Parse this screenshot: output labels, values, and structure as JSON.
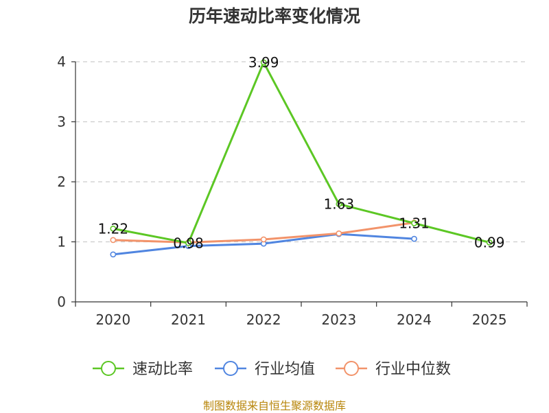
{
  "chart_data": {
    "type": "line",
    "title": "历年速动比率变化情况",
    "categories": [
      "2020",
      "2021",
      "2022",
      "2023",
      "2024",
      "2025"
    ],
    "ylim": [
      0,
      4
    ],
    "yticks": [
      0,
      1,
      2,
      3,
      4
    ],
    "grid": true,
    "legend_position": "bottom",
    "series": [
      {
        "name": "速动比率",
        "color": "#5cc724",
        "values": [
          1.22,
          0.98,
          3.99,
          1.63,
          1.31,
          0.99
        ],
        "labels": [
          "1.22",
          "0.98",
          "3.99",
          "1.63",
          "1.31",
          "0.99"
        ],
        "show_labels": true,
        "marker_color": "#5cc724"
      },
      {
        "name": "行业均值",
        "color": "#5085e0",
        "values": [
          0.79,
          0.93,
          0.97,
          1.13,
          1.05,
          null
        ],
        "show_labels": false,
        "marker_color": "#5085e0"
      },
      {
        "name": "行业中位数",
        "color": "#f2936a",
        "values": [
          1.03,
          0.99,
          1.04,
          1.14,
          1.32,
          null
        ],
        "show_labels": false,
        "marker_color": "#f2936a"
      }
    ]
  },
  "source": "制图数据来自恒生聚源数据库"
}
